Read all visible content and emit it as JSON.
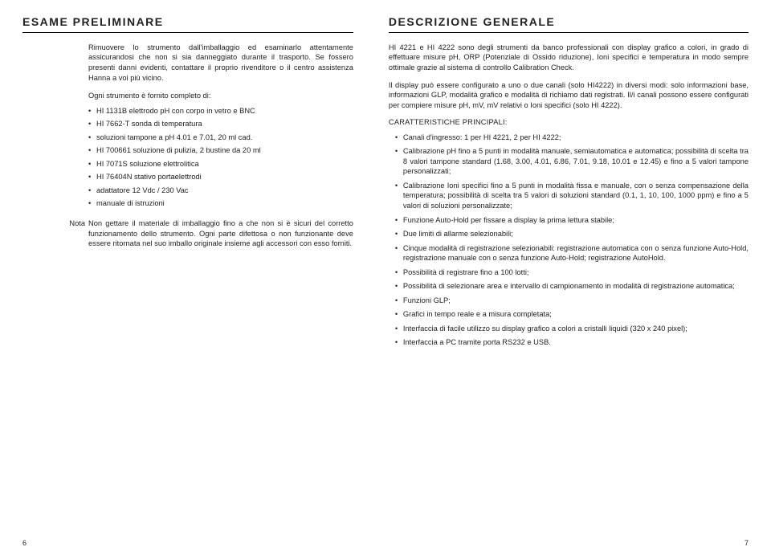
{
  "left": {
    "heading": "ESAME PRELIMINARE",
    "p1": "Rimuovere lo strumento dall'imballaggio ed esaminarlo attentamente assicurandosi che non si sia danneggiato durante il trasporto. Se fossero presenti danni evidenti, contattare il proprio rivenditore o il centro assistenza Hanna a voi più vicino.",
    "lead": "Ogni strumento è fornito completo di:",
    "items": [
      "HI 1131B elettrodo pH con corpo in vetro e BNC",
      "HI 7662-T sonda di temperatura",
      "soluzioni tampone a pH 4.01 e 7.01, 20 ml cad.",
      "HI 700661 soluzione di pulizia, 2 bustine da 20 ml",
      "HI 7071S soluzione elettrolitica",
      "HI 76404N stativo portaelettrodi",
      "adattatore 12 Vdc / 230 Vac",
      "manuale di istruzioni"
    ],
    "note_label": "Nota",
    "note": "Non gettare il materiale di imballaggio fino a che non si è sicuri del corretto funzionamento dello strumento. Ogni parte difettosa o non funzionante deve essere ritornata nel suo imballo originale insieme agli accessori con esso forniti.",
    "page": "6"
  },
  "right": {
    "heading": "DESCRIZIONE GENERALE",
    "p1": "HI 4221 e HI 4222 sono degli strumenti da banco professionali con display grafico a colori, in grado di effettuare misure pH, ORP (Potenziale di Ossido riduzione), Ioni specifici e temperatura in modo sempre ottimale grazie al sistema di controllo Calibration Check.",
    "p2": "Il display può essere configurato a uno o due canali (solo HI4222) in diversi modi: solo informazioni base, informazioni GLP, modalità grafico e modalità di richiamo dati registrati. Il/i canali possono essere configurati per compiere misure pH, mV, mV relativi o Ioni specifici (solo HI 4222).",
    "features_head": "CARATTERISTICHE PRINCIPALI:",
    "features": [
      "Canali d'ingresso: 1 per HI 4221, 2 per HI 4222;",
      "Calibrazione pH fino a 5 punti in modalità manuale, semiautomatica e automatica; possibilità di scelta tra 8 valori tampone standard (1.68, 3.00, 4.01, 6.86, 7.01, 9.18, 10.01 e 12.45) e fino a 5 valori tampone personalizzati;",
      "Calibrazione Ioni specifici fino a 5 punti in modalità fissa e manuale, con o senza compensazione della temperatura; possibilità di scelta tra 5 valori di soluzioni standard (0.1, 1, 10, 100, 1000 ppm) e fino a 5 valori di soluzioni personalizzate;",
      "Funzione Auto-Hold per fissare a display la prima lettura stabile;",
      "Due limiti di allarme selezionabili;",
      "Cinque modalità di registrazione selezionabili: registrazione automatica con o senza funzione Auto-Hold, registrazione manuale con o senza funzione Auto-Hold; registrazione AutoHold.",
      "Possibilità di registrare fino a 100 lotti;",
      "Possibilità di selezionare area e intervallo di campionamento in modalità di registrazione automatica;",
      "Funzioni GLP;",
      "Grafici in tempo reale e a misura completata;",
      "Interfaccia di facile utilizzo su display grafico a colori a cristalli liquidi  (320 x 240 pixel);",
      "Interfaccia a PC tramite porta RS232 e USB."
    ],
    "page": "7"
  }
}
